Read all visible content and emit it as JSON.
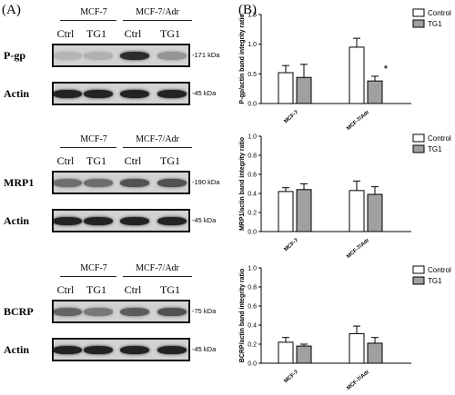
{
  "panels": {
    "a_label": "(A)",
    "b_label": "(B)"
  },
  "blots": [
    {
      "groups": [
        "MCF-7",
        "MCF-7/Adr"
      ],
      "lanes": [
        "Ctrl",
        "TG1",
        "Ctrl",
        "TG1"
      ],
      "target": {
        "name": "P-gp",
        "kda": "171 kDa"
      },
      "actin": {
        "name": "Actin",
        "kda": "45 kDa"
      },
      "target_intensity": [
        0.18,
        0.2,
        0.9,
        0.35
      ],
      "actin_intensity": [
        0.95,
        0.95,
        0.95,
        0.95
      ]
    },
    {
      "groups": [
        "MCF-7",
        "MCF-7/Adr"
      ],
      "lanes": [
        "Ctrl",
        "TG1",
        "Ctrl",
        "TG1"
      ],
      "target": {
        "name": "MRP1",
        "kda": "190 kDa"
      },
      "actin": {
        "name": "Actin",
        "kda": "45 kDa"
      },
      "target_intensity": [
        0.55,
        0.55,
        0.7,
        0.7
      ],
      "actin_intensity": [
        0.95,
        0.95,
        0.95,
        0.95
      ]
    },
    {
      "groups": [
        "MCF-7",
        "MCF-7/Adr"
      ],
      "lanes": [
        "Ctrl",
        "TG1",
        "Ctrl",
        "TG1"
      ],
      "target": {
        "name": "BCRP",
        "kda": "75 kDa"
      },
      "actin": {
        "name": "Actin",
        "kda": "45 kDa"
      },
      "target_intensity": [
        0.6,
        0.5,
        0.65,
        0.7
      ],
      "actin_intensity": [
        0.95,
        0.95,
        0.95,
        0.95
      ]
    }
  ],
  "chart_data": [
    {
      "type": "bar",
      "ylabel": "P-gp/actin band integrity ratio",
      "categories": [
        "MCF-7",
        "MCF-7/Adr"
      ],
      "series": [
        {
          "name": "Control",
          "color": "#ffffff",
          "values": [
            0.52,
            0.95
          ],
          "errors": [
            0.12,
            0.15
          ]
        },
        {
          "name": "TG1",
          "color": "#a0a0a0",
          "values": [
            0.44,
            0.38
          ],
          "errors": [
            0.22,
            0.08
          ]
        }
      ],
      "ylim": [
        0.0,
        1.5
      ],
      "yticks": [
        "0.0",
        "0.5",
        "1.0",
        "1.5"
      ],
      "annotation": "*",
      "legend": "top-right"
    },
    {
      "type": "bar",
      "ylabel": "MRP1/actin band integrity ratio",
      "categories": [
        "MCF-7",
        "MCF-7/Adr"
      ],
      "series": [
        {
          "name": "Control",
          "color": "#ffffff",
          "values": [
            0.42,
            0.43
          ],
          "errors": [
            0.04,
            0.1
          ]
        },
        {
          "name": "TG1",
          "color": "#a0a0a0",
          "values": [
            0.44,
            0.39
          ],
          "errors": [
            0.06,
            0.08
          ]
        }
      ],
      "ylim": [
        0.0,
        1.0
      ],
      "yticks": [
        "0.0",
        "0.2",
        "0.4",
        "0.6",
        "0.8",
        "1.0"
      ],
      "legend": "top-right"
    },
    {
      "type": "bar",
      "ylabel": "BCRP/actin band integrity ratio",
      "categories": [
        "MCF-7",
        "MCF-7/Adr"
      ],
      "series": [
        {
          "name": "Control",
          "color": "#ffffff",
          "values": [
            0.22,
            0.31
          ],
          "errors": [
            0.05,
            0.08
          ]
        },
        {
          "name": "TG1",
          "color": "#a0a0a0",
          "values": [
            0.18,
            0.21
          ],
          "errors": [
            0.02,
            0.06
          ]
        }
      ],
      "ylim": [
        0.0,
        1.0
      ],
      "yticks": [
        "0.0",
        "0.2",
        "0.4",
        "0.6",
        "0.8",
        "1.0"
      ],
      "legend": "top-right"
    }
  ]
}
